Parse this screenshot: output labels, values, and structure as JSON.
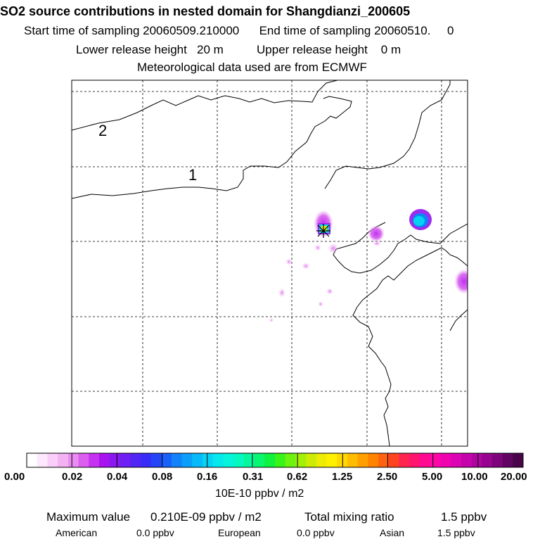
{
  "header": {
    "title": "SO2 source contributions in nested domain for Shangdianzi_200605",
    "start_label": "Start time of sampling",
    "start_value": "20060509.210000",
    "end_label": "End time of sampling",
    "end_value": "20060510.     0",
    "lower_label": "Lower release height",
    "lower_value": "20 m",
    "upper_label": "Upper release height",
    "upper_value": "0 m",
    "met_text": "Meteorological data used are from ECMWF"
  },
  "map": {
    "region_labels": [
      "2",
      "1"
    ],
    "station_marker": "star-marker"
  },
  "colorbar": {
    "tick_labels": [
      "0.00",
      "0.02",
      "0.04",
      "0.08",
      "0.16",
      "0.31",
      "0.62",
      "1.25",
      "2.50",
      "5.00",
      "10.00",
      "20.00"
    ],
    "colors": [
      "#ffffff",
      "#fde8fd",
      "#f9cff9",
      "#f3b3f3",
      "#ea8df2",
      "#dc5ef0",
      "#c630f0",
      "#a812ee",
      "#8a18f0",
      "#6f20f2",
      "#5226f4",
      "#3a2cf8",
      "#2445f8",
      "#1a60fa",
      "#1282fa",
      "#0aa0fa",
      "#08baf8",
      "#06d4f4",
      "#05e8ec",
      "#04f4dc",
      "#04f8c0",
      "#06f89c",
      "#08f670",
      "#10f240",
      "#38f418",
      "#6ef210",
      "#a2f008",
      "#ccec06",
      "#ecec04",
      "#fff000",
      "#ffd800",
      "#ffbc00",
      "#ffa000",
      "#ff8200",
      "#ff6210",
      "#ff4220",
      "#ff2450",
      "#ff1470",
      "#ff0a90",
      "#ff06a8",
      "#f004b0",
      "#dc04b4",
      "#c604ac",
      "#b004a0",
      "#960490",
      "#7e047c",
      "#620462",
      "#4a044a"
    ],
    "units": "10E-10 ppbv / m2"
  },
  "footer": {
    "max_label": "Maximum value",
    "max_value": "0.210E-09 ppbv / m2",
    "total_label": "Total mixing ratio",
    "total_value": "1.5 ppbv",
    "american_label": "American",
    "american_value": "0.0 ppbv",
    "european_label": "European",
    "european_value": "0.0 ppbv",
    "asian_label": "Asian",
    "asian_value": "1.5 ppbv"
  }
}
